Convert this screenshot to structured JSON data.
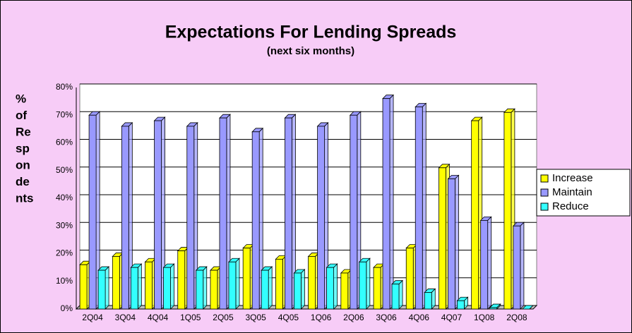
{
  "chart_data": {
    "type": "bar",
    "title": "Expectations For Lending Spreads",
    "subtitle": "(next six months)",
    "y_label_lines": [
      "%",
      "of",
      "Re",
      "sp",
      "on",
      "de",
      "nts"
    ],
    "categories": [
      "2Q04",
      "3Q04",
      "4Q04",
      "1Q05",
      "2Q05",
      "3Q05",
      "4Q05",
      "1Q06",
      "2Q06",
      "3Q06",
      "4Q06",
      "4Q07",
      "1Q08",
      "2Q08"
    ],
    "series": [
      {
        "name": "Increase",
        "color": "#ffff00",
        "values": [
          16,
          19,
          17,
          21,
          14,
          22,
          18,
          19,
          13,
          15,
          22,
          51,
          68,
          71
        ]
      },
      {
        "name": "Maintain",
        "color": "#9999ff",
        "values": [
          70,
          66,
          68,
          66,
          69,
          64,
          69,
          66,
          70,
          76,
          73,
          47,
          32,
          30
        ]
      },
      {
        "name": "Reduce",
        "color": "#33ffff",
        "values": [
          14,
          15,
          15,
          14,
          17,
          14,
          13,
          15,
          17,
          9,
          6,
          3,
          0.5,
          0
        ]
      }
    ],
    "ylim": [
      0,
      80
    ],
    "yticks": [
      {
        "value": 0,
        "label": "0%"
      },
      {
        "value": 10,
        "label": "10%"
      },
      {
        "value": 20,
        "label": "20%"
      },
      {
        "value": 30,
        "label": "30%"
      },
      {
        "value": 40,
        "label": "40%"
      },
      {
        "value": 50,
        "label": "50%"
      },
      {
        "value": 60,
        "label": "60%"
      },
      {
        "value": 70,
        "label": "70%"
      },
      {
        "value": 80,
        "label": "80%"
      }
    ],
    "grid": true,
    "legend": "right"
  }
}
